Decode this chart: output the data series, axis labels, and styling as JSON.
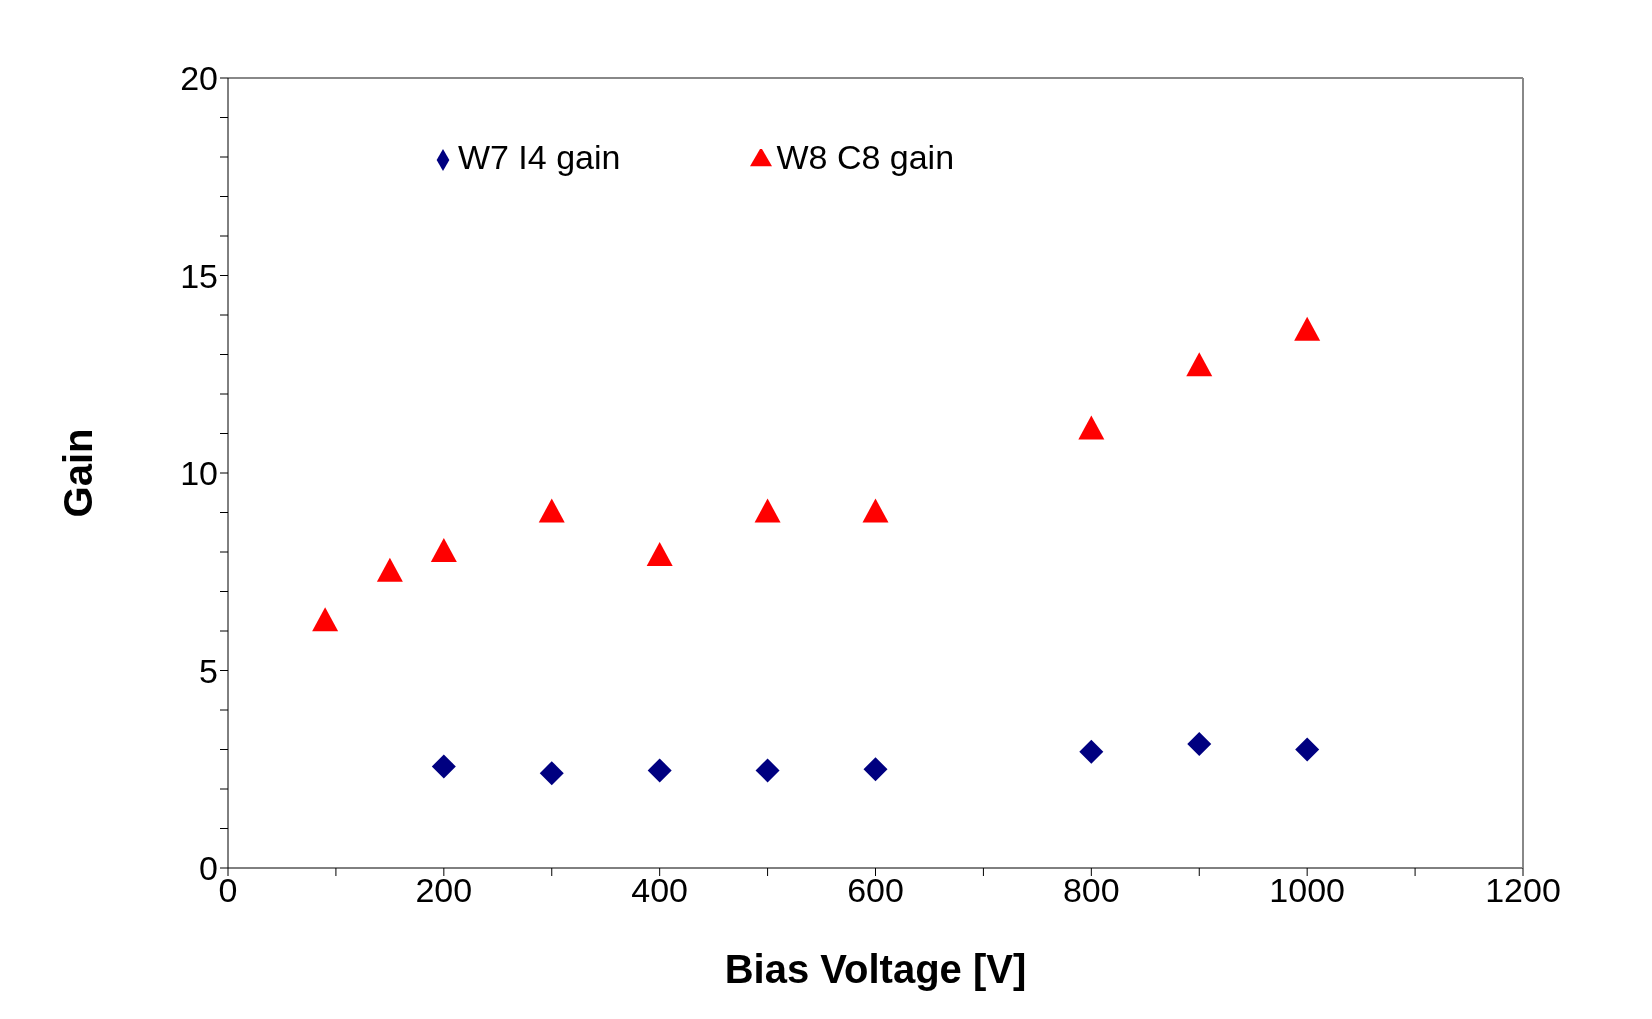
{
  "chart_data": {
    "type": "scatter",
    "xlabel": "Bias Voltage [V]",
    "ylabel": "Gain",
    "xlim": [
      0,
      1200
    ],
    "ylim": [
      0,
      20
    ],
    "xticks": [
      0,
      {
        "value": 100,
        "label": null
      },
      200,
      {
        "value": 300,
        "label": null
      },
      400,
      {
        "value": 500,
        "label": null
      },
      600,
      {
        "value": 700,
        "label": null
      },
      800,
      {
        "value": 900,
        "label": null
      },
      1000,
      {
        "value": 1100,
        "label": null
      },
      1200
    ],
    "yticks": [
      0,
      {
        "value": 1,
        "label": null
      },
      {
        "value": 2,
        "label": null
      },
      {
        "value": 3,
        "label": null
      },
      {
        "value": 4,
        "label": null
      },
      5,
      {
        "value": 6,
        "label": null
      },
      {
        "value": 7,
        "label": null
      },
      {
        "value": 8,
        "label": null
      },
      {
        "value": 9,
        "label": null
      },
      10,
      {
        "value": 11,
        "label": null
      },
      {
        "value": 12,
        "label": null
      },
      {
        "value": 13,
        "label": null
      },
      {
        "value": 14,
        "label": null
      },
      15,
      {
        "value": 16,
        "label": null
      },
      {
        "value": 17,
        "label": null
      },
      {
        "value": 18,
        "label": null
      },
      {
        "value": 19,
        "label": null
      },
      20
    ],
    "grid": false,
    "legend": "top",
    "series": [
      {
        "name": "W7 I4 gain",
        "color": "#000080",
        "marker": "diamond",
        "x": [
          200,
          300,
          400,
          500,
          600,
          800,
          900,
          1000
        ],
        "values": [
          2.57,
          2.4,
          2.47,
          2.47,
          2.5,
          2.94,
          3.14,
          3.0
        ]
      },
      {
        "name": "W8 C8 gain",
        "color": "#ff0000",
        "marker": "triangle",
        "x": [
          90,
          150,
          200,
          300,
          400,
          500,
          600,
          800,
          900,
          1000
        ],
        "values": [
          6.25,
          7.5,
          8.0,
          9.0,
          7.9,
          9.0,
          9.0,
          11.1,
          12.7,
          13.6
        ]
      }
    ]
  }
}
